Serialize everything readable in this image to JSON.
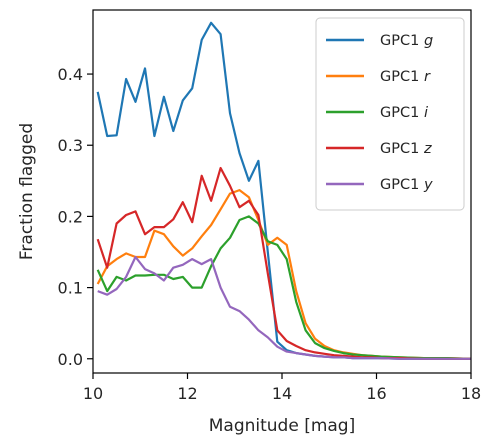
{
  "chart_data": {
    "type": "line",
    "title": "",
    "xlabel": "Magnitude [mag]",
    "ylabel": "Fraction flagged",
    "xlim": [
      10,
      18
    ],
    "ylim": [
      -0.02,
      0.49
    ],
    "xticks": [
      10,
      12,
      14,
      16,
      18
    ],
    "xtick_labels": [
      "10",
      "12",
      "14",
      "16",
      "18"
    ],
    "yticks": [
      0.0,
      0.1,
      0.2,
      0.3,
      0.4
    ],
    "ytick_labels": [
      "0.0",
      "0.1",
      "0.2",
      "0.3",
      "0.4"
    ],
    "grid": false,
    "legend_position": "top-right",
    "series": [
      {
        "name": "GPC1",
        "name_suffix": "g",
        "color": "#1f77b4",
        "x": [
          10.1,
          10.3,
          10.5,
          10.7,
          10.9,
          11.1,
          11.3,
          11.5,
          11.7,
          11.9,
          12.1,
          12.3,
          12.5,
          12.7,
          12.9,
          13.1,
          13.3,
          13.5,
          13.7,
          13.9,
          14.1,
          14.3,
          14.5,
          14.7,
          14.9,
          15.1,
          15.3,
          15.5,
          15.7,
          15.9,
          16.1,
          16.5,
          17.0,
          17.5,
          18.0
        ],
        "y": [
          0.375,
          0.313,
          0.314,
          0.393,
          0.361,
          0.408,
          0.313,
          0.368,
          0.32,
          0.363,
          0.38,
          0.448,
          0.472,
          0.456,
          0.345,
          0.289,
          0.25,
          0.278,
          0.15,
          0.024,
          0.012,
          0.008,
          0.006,
          0.004,
          0.003,
          0.002,
          0.002,
          0.001,
          0.001,
          0.001,
          0.001,
          0.0,
          0.0,
          0.0,
          0.0
        ]
      },
      {
        "name": "GPC1",
        "name_suffix": "r",
        "color": "#ff7f0e",
        "x": [
          10.1,
          10.3,
          10.5,
          10.7,
          10.9,
          11.1,
          11.3,
          11.5,
          11.7,
          11.9,
          12.1,
          12.3,
          12.5,
          12.7,
          12.9,
          13.1,
          13.3,
          13.5,
          13.7,
          13.9,
          14.1,
          14.3,
          14.5,
          14.7,
          14.9,
          15.1,
          15.3,
          15.5,
          15.7,
          15.9,
          16.1,
          16.5,
          17.0,
          17.5,
          18.0
        ],
        "y": [
          0.105,
          0.13,
          0.14,
          0.148,
          0.143,
          0.143,
          0.18,
          0.175,
          0.158,
          0.145,
          0.155,
          0.172,
          0.188,
          0.21,
          0.232,
          0.237,
          0.227,
          0.195,
          0.16,
          0.17,
          0.16,
          0.095,
          0.05,
          0.028,
          0.018,
          0.012,
          0.009,
          0.007,
          0.005,
          0.004,
          0.003,
          0.002,
          0.001,
          0.001,
          0.0
        ]
      },
      {
        "name": "GPC1",
        "name_suffix": "i",
        "color": "#2ca02c",
        "x": [
          10.1,
          10.3,
          10.5,
          10.7,
          10.9,
          11.1,
          11.3,
          11.5,
          11.7,
          11.9,
          12.1,
          12.3,
          12.5,
          12.7,
          12.9,
          13.1,
          13.3,
          13.5,
          13.7,
          13.9,
          14.1,
          14.3,
          14.5,
          14.7,
          14.9,
          15.1,
          15.3,
          15.5,
          15.7,
          15.9,
          16.1,
          16.5,
          17.0,
          17.5,
          18.0
        ],
        "y": [
          0.125,
          0.095,
          0.115,
          0.11,
          0.117,
          0.117,
          0.118,
          0.118,
          0.112,
          0.115,
          0.1,
          0.1,
          0.13,
          0.155,
          0.17,
          0.195,
          0.2,
          0.19,
          0.165,
          0.16,
          0.14,
          0.08,
          0.04,
          0.022,
          0.015,
          0.011,
          0.008,
          0.006,
          0.005,
          0.004,
          0.003,
          0.002,
          0.001,
          0.001,
          0.0
        ]
      },
      {
        "name": "GPC1",
        "name_suffix": "z",
        "color": "#d62728",
        "x": [
          10.1,
          10.3,
          10.5,
          10.7,
          10.9,
          11.1,
          11.3,
          11.5,
          11.7,
          11.9,
          12.1,
          12.3,
          12.5,
          12.7,
          12.9,
          13.1,
          13.3,
          13.5,
          13.7,
          13.9,
          14.1,
          14.3,
          14.5,
          14.7,
          14.9,
          15.1,
          15.3,
          15.5,
          15.7,
          15.9,
          16.1,
          16.5,
          17.0,
          17.5,
          18.0
        ],
        "y": [
          0.168,
          0.128,
          0.19,
          0.202,
          0.207,
          0.175,
          0.185,
          0.185,
          0.196,
          0.22,
          0.192,
          0.257,
          0.222,
          0.268,
          0.243,
          0.213,
          0.222,
          0.202,
          0.12,
          0.04,
          0.025,
          0.018,
          0.012,
          0.009,
          0.007,
          0.005,
          0.004,
          0.003,
          0.002,
          0.002,
          0.001,
          0.001,
          0.0,
          0.0,
          0.0
        ]
      },
      {
        "name": "GPC1",
        "name_suffix": "y",
        "color": "#9467bd",
        "x": [
          10.1,
          10.3,
          10.5,
          10.7,
          10.9,
          11.1,
          11.3,
          11.5,
          11.7,
          11.9,
          12.1,
          12.3,
          12.5,
          12.7,
          12.9,
          13.1,
          13.3,
          13.5,
          13.7,
          13.9,
          14.1,
          14.3,
          14.5,
          14.7,
          14.9,
          15.1,
          15.3,
          15.5,
          15.7,
          15.9,
          16.1,
          16.5,
          17.0,
          17.5,
          18.0
        ],
        "y": [
          0.095,
          0.09,
          0.098,
          0.115,
          0.143,
          0.126,
          0.12,
          0.11,
          0.128,
          0.132,
          0.14,
          0.133,
          0.14,
          0.1,
          0.073,
          0.067,
          0.055,
          0.04,
          0.03,
          0.017,
          0.01,
          0.008,
          0.006,
          0.004,
          0.003,
          0.002,
          0.002,
          0.001,
          0.001,
          0.001,
          0.001,
          0.0,
          0.0,
          0.0,
          0.0
        ]
      }
    ]
  }
}
